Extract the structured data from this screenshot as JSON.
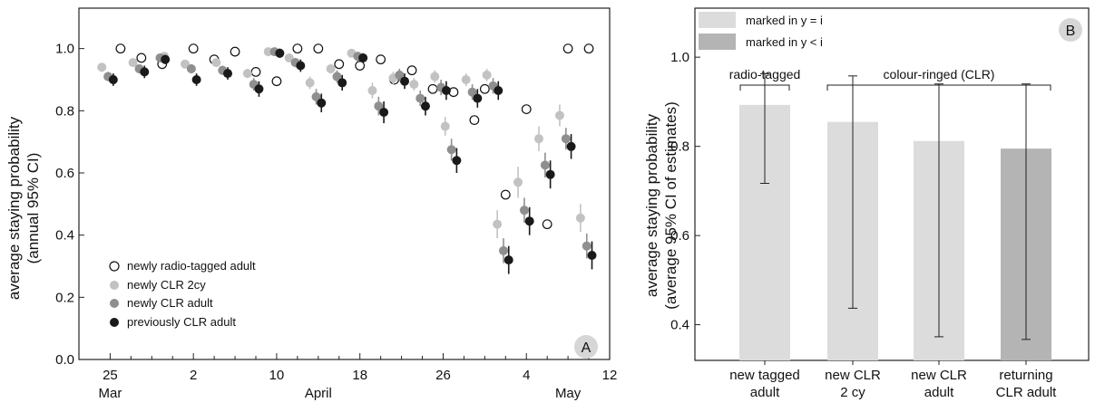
{
  "colors": {
    "radio_tagged": "#ffffff",
    "clr_2cy": "#c2c2c2",
    "clr_adult_new": "#8f8f8f",
    "clr_adult_previous": "#1a1a1a",
    "bar_y_eq_i": "#dcdcdc",
    "bar_y_lt_i": "#b4b4b4"
  },
  "chart_data": [
    {
      "panel": "A",
      "type": "scatter",
      "ylabel_line1": "average staying probability",
      "ylabel_line2": "(annual 95% CI)",
      "x_unit": "day (date)",
      "xlim": [
        -3,
        48
      ],
      "ylim": [
        0,
        1.13
      ],
      "yticks": [
        0.0,
        0.2,
        0.4,
        0.6,
        0.8,
        1.0
      ],
      "ytick_labels": [
        "0.0",
        "0.2",
        "0.4",
        "0.6",
        "0.8",
        "1.0"
      ],
      "xticks": [
        {
          "x": 0,
          "label": "25"
        },
        {
          "x": 8,
          "label": "2"
        },
        {
          "x": 16,
          "label": "10"
        },
        {
          "x": 24,
          "label": "18"
        },
        {
          "x": 32,
          "label": "26"
        },
        {
          "x": 40,
          "label": "4"
        },
        {
          "x": 48,
          "label": "12"
        }
      ],
      "month_labels": [
        {
          "x": 0,
          "label": "Mar"
        },
        {
          "x": 20,
          "label": "April"
        },
        {
          "x": 44,
          "label": "May"
        }
      ],
      "grid": false,
      "legend_position": "bottom-left",
      "series": [
        {
          "name": "newly radio-tagged adult",
          "key": "radio_tagged",
          "points": [
            {
              "x": 1.0,
              "y": 1.0
            },
            {
              "x": 3.0,
              "y": 0.97
            },
            {
              "x": 5.0,
              "y": 0.95
            },
            {
              "x": 8.0,
              "y": 1.0
            },
            {
              "x": 10.0,
              "y": 0.965
            },
            {
              "x": 12.0,
              "y": 0.99
            },
            {
              "x": 14.0,
              "y": 0.925
            },
            {
              "x": 16.0,
              "y": 0.895
            },
            {
              "x": 18.0,
              "y": 1.0
            },
            {
              "x": 20.0,
              "y": 1.0
            },
            {
              "x": 22.0,
              "y": 0.95
            },
            {
              "x": 24.0,
              "y": 0.945
            },
            {
              "x": 26.0,
              "y": 0.965
            },
            {
              "x": 27.3,
              "y": 0.9
            },
            {
              "x": 29.0,
              "y": 0.93
            },
            {
              "x": 31.0,
              "y": 0.87
            },
            {
              "x": 33.0,
              "y": 0.86
            },
            {
              "x": 35.0,
              "y": 0.77
            },
            {
              "x": 36.0,
              "y": 0.87
            },
            {
              "x": 38.0,
              "y": 0.53
            },
            {
              "x": 40.0,
              "y": 0.805
            },
            {
              "x": 42.0,
              "y": 0.435
            },
            {
              "x": 44.0,
              "y": 1.0
            },
            {
              "x": 46.0,
              "y": 1.0
            }
          ]
        },
        {
          "name": "newly CLR 2cy",
          "key": "clr_2cy",
          "points": [
            {
              "x": -0.8,
              "y": 0.94,
              "lo": 0.93,
              "hi": 0.95
            },
            {
              "x": 2.2,
              "y": 0.955,
              "lo": 0.945,
              "hi": 0.965
            },
            {
              "x": 5.2,
              "y": 0.975,
              "lo": 0.965,
              "hi": 0.985
            },
            {
              "x": 7.2,
              "y": 0.95,
              "lo": 0.94,
              "hi": 0.96
            },
            {
              "x": 10.2,
              "y": 0.955,
              "lo": 0.945,
              "hi": 0.965
            },
            {
              "x": 13.2,
              "y": 0.92,
              "lo": 0.905,
              "hi": 0.935
            },
            {
              "x": 15.2,
              "y": 0.99,
              "lo": 0.98,
              "hi": 1.0
            },
            {
              "x": 17.2,
              "y": 0.97,
              "lo": 0.96,
              "hi": 0.98
            },
            {
              "x": 19.2,
              "y": 0.89,
              "lo": 0.87,
              "hi": 0.91
            },
            {
              "x": 21.2,
              "y": 0.935,
              "lo": 0.92,
              "hi": 0.95
            },
            {
              "x": 23.2,
              "y": 0.985,
              "lo": 0.975,
              "hi": 0.995
            },
            {
              "x": 25.2,
              "y": 0.865,
              "lo": 0.84,
              "hi": 0.89
            },
            {
              "x": 27.2,
              "y": 0.905,
              "lo": 0.885,
              "hi": 0.925
            },
            {
              "x": 29.2,
              "y": 0.885,
              "lo": 0.865,
              "hi": 0.905
            },
            {
              "x": 31.2,
              "y": 0.91,
              "lo": 0.89,
              "hi": 0.93
            },
            {
              "x": 32.2,
              "y": 0.75,
              "lo": 0.72,
              "hi": 0.78
            },
            {
              "x": 34.2,
              "y": 0.9,
              "lo": 0.88,
              "hi": 0.92
            },
            {
              "x": 36.2,
              "y": 0.915,
              "lo": 0.895,
              "hi": 0.935
            },
            {
              "x": 37.2,
              "y": 0.435,
              "lo": 0.39,
              "hi": 0.48
            },
            {
              "x": 39.2,
              "y": 0.57,
              "lo": 0.52,
              "hi": 0.62
            },
            {
              "x": 41.2,
              "y": 0.71,
              "lo": 0.67,
              "hi": 0.75
            },
            {
              "x": 43.2,
              "y": 0.785,
              "lo": 0.75,
              "hi": 0.82
            },
            {
              "x": 45.2,
              "y": 0.455,
              "lo": 0.41,
              "hi": 0.5
            }
          ]
        },
        {
          "name": "newly CLR adult",
          "key": "clr_adult_new",
          "points": [
            {
              "x": -0.2,
              "y": 0.91,
              "lo": 0.895,
              "hi": 0.925
            },
            {
              "x": 2.8,
              "y": 0.935,
              "lo": 0.92,
              "hi": 0.95
            },
            {
              "x": 4.8,
              "y": 0.97,
              "lo": 0.96,
              "hi": 0.98
            },
            {
              "x": 7.8,
              "y": 0.935,
              "lo": 0.92,
              "hi": 0.95
            },
            {
              "x": 10.8,
              "y": 0.93,
              "lo": 0.915,
              "hi": 0.945
            },
            {
              "x": 13.8,
              "y": 0.885,
              "lo": 0.865,
              "hi": 0.905
            },
            {
              "x": 15.8,
              "y": 0.99,
              "lo": 0.98,
              "hi": 1.0
            },
            {
              "x": 17.8,
              "y": 0.955,
              "lo": 0.94,
              "hi": 0.97
            },
            {
              "x": 19.8,
              "y": 0.845,
              "lo": 0.82,
              "hi": 0.87
            },
            {
              "x": 21.8,
              "y": 0.91,
              "lo": 0.89,
              "hi": 0.93
            },
            {
              "x": 23.8,
              "y": 0.975,
              "lo": 0.96,
              "hi": 0.99
            },
            {
              "x": 25.8,
              "y": 0.815,
              "lo": 0.785,
              "hi": 0.845
            },
            {
              "x": 27.8,
              "y": 0.915,
              "lo": 0.895,
              "hi": 0.935
            },
            {
              "x": 29.8,
              "y": 0.84,
              "lo": 0.815,
              "hi": 0.865
            },
            {
              "x": 31.8,
              "y": 0.875,
              "lo": 0.85,
              "hi": 0.9
            },
            {
              "x": 32.8,
              "y": 0.675,
              "lo": 0.64,
              "hi": 0.71
            },
            {
              "x": 34.8,
              "y": 0.86,
              "lo": 0.835,
              "hi": 0.885
            },
            {
              "x": 36.8,
              "y": 0.88,
              "lo": 0.855,
              "hi": 0.905
            },
            {
              "x": 37.8,
              "y": 0.35,
              "lo": 0.31,
              "hi": 0.39
            },
            {
              "x": 39.8,
              "y": 0.48,
              "lo": 0.44,
              "hi": 0.52
            },
            {
              "x": 41.8,
              "y": 0.625,
              "lo": 0.585,
              "hi": 0.665
            },
            {
              "x": 43.8,
              "y": 0.71,
              "lo": 0.675,
              "hi": 0.745
            },
            {
              "x": 45.8,
              "y": 0.365,
              "lo": 0.325,
              "hi": 0.405
            }
          ]
        },
        {
          "name": "previously CLR adult",
          "key": "clr_adult_previous",
          "points": [
            {
              "x": 0.3,
              "y": 0.9,
              "lo": 0.88,
              "hi": 0.92
            },
            {
              "x": 3.3,
              "y": 0.925,
              "lo": 0.905,
              "hi": 0.945
            },
            {
              "x": 5.3,
              "y": 0.965,
              "lo": 0.95,
              "hi": 0.98
            },
            {
              "x": 8.3,
              "y": 0.9,
              "lo": 0.88,
              "hi": 0.92
            },
            {
              "x": 11.3,
              "y": 0.92,
              "lo": 0.9,
              "hi": 0.94
            },
            {
              "x": 14.3,
              "y": 0.87,
              "lo": 0.845,
              "hi": 0.895
            },
            {
              "x": 16.3,
              "y": 0.985,
              "lo": 0.97,
              "hi": 1.0
            },
            {
              "x": 18.3,
              "y": 0.945,
              "lo": 0.925,
              "hi": 0.965
            },
            {
              "x": 20.3,
              "y": 0.825,
              "lo": 0.795,
              "hi": 0.855
            },
            {
              "x": 22.3,
              "y": 0.89,
              "lo": 0.865,
              "hi": 0.915
            },
            {
              "x": 24.3,
              "y": 0.97,
              "lo": 0.955,
              "hi": 0.985
            },
            {
              "x": 26.3,
              "y": 0.795,
              "lo": 0.76,
              "hi": 0.83
            },
            {
              "x": 28.3,
              "y": 0.895,
              "lo": 0.87,
              "hi": 0.92
            },
            {
              "x": 30.3,
              "y": 0.815,
              "lo": 0.785,
              "hi": 0.845
            },
            {
              "x": 32.3,
              "y": 0.865,
              "lo": 0.835,
              "hi": 0.895
            },
            {
              "x": 33.3,
              "y": 0.64,
              "lo": 0.6,
              "hi": 0.68
            },
            {
              "x": 35.3,
              "y": 0.84,
              "lo": 0.81,
              "hi": 0.87
            },
            {
              "x": 37.3,
              "y": 0.865,
              "lo": 0.835,
              "hi": 0.895
            },
            {
              "x": 38.3,
              "y": 0.32,
              "lo": 0.275,
              "hi": 0.365
            },
            {
              "x": 40.3,
              "y": 0.445,
              "lo": 0.4,
              "hi": 0.49
            },
            {
              "x": 42.3,
              "y": 0.595,
              "lo": 0.55,
              "hi": 0.64
            },
            {
              "x": 44.3,
              "y": 0.685,
              "lo": 0.645,
              "hi": 0.725
            },
            {
              "x": 46.3,
              "y": 0.335,
              "lo": 0.29,
              "hi": 0.38
            }
          ]
        }
      ]
    },
    {
      "panel": "B",
      "type": "bar",
      "ylabel_line1": "average staying probability",
      "ylabel_line2": "(average 95% CI of estimates)",
      "ylim": [
        0.32,
        1.11
      ],
      "yticks": [
        0.4,
        0.6,
        0.8,
        1.0
      ],
      "ytick_labels": [
        "0.4",
        "0.6",
        "0.8",
        "1.0"
      ],
      "categories": [
        {
          "line1": "new tagged",
          "line2": "adult"
        },
        {
          "line1": "new CLR",
          "line2": "2 cy"
        },
        {
          "line1": "new CLR",
          "line2": "adult"
        },
        {
          "line1": "returning",
          "line2": "CLR adult"
        }
      ],
      "values": [
        0.893,
        0.855,
        0.812,
        0.795
      ],
      "ci_low": [
        0.717,
        0.437,
        0.373,
        0.367
      ],
      "ci_high": [
        0.963,
        0.958,
        0.94,
        0.94
      ],
      "bar_color_keys": [
        "bar_y_eq_i",
        "bar_y_eq_i",
        "bar_y_eq_i",
        "bar_y_lt_i"
      ],
      "legend": [
        {
          "label": "marked in y = i",
          "color_key": "bar_y_eq_i"
        },
        {
          "label": "marked in y < i",
          "color_key": "bar_y_lt_i"
        }
      ],
      "legend_position": "top-left",
      "groups": [
        {
          "label": "radio-tagged",
          "from": 0,
          "to": 0
        },
        {
          "label": "colour-ringed (CLR)",
          "from": 1,
          "to": 3
        }
      ],
      "grid": false
    }
  ]
}
